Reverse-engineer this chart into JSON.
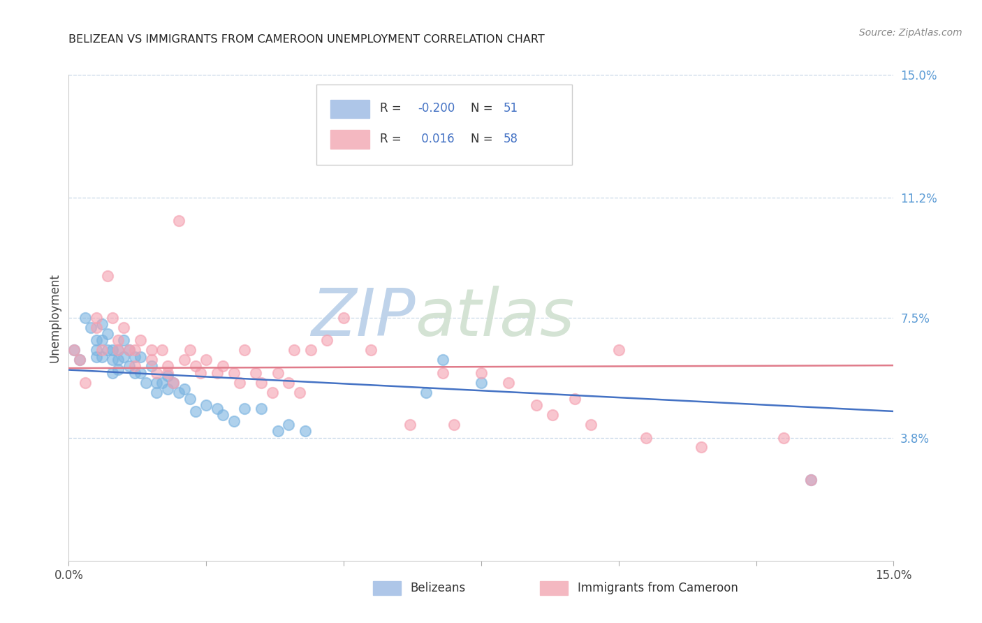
{
  "title": "BELIZEAN VS IMMIGRANTS FROM CAMEROON UNEMPLOYMENT CORRELATION CHART",
  "source": "Source: ZipAtlas.com",
  "ylabel_label": "Unemployment",
  "xmin": 0.0,
  "xmax": 0.15,
  "ymin": 0.0,
  "ymax": 0.15,
  "ylabel_values_right": [
    0.15,
    0.112,
    0.075,
    0.038
  ],
  "ylabel_ticks_right": [
    "15.0%",
    "11.2%",
    "7.5%",
    "3.8%"
  ],
  "series1_color": "#7ab3e0",
  "series2_color": "#f4a0b0",
  "trendline1_color": "#4472c4",
  "trendline2_color": "#e07b8a",
  "watermark_zip_color": "#b8cfe8",
  "watermark_atlas_color": "#d8e8d8",
  "background_color": "#ffffff",
  "grid_color": "#c8d8e8",
  "series1_R": -0.2,
  "series1_N": 51,
  "series2_R": 0.016,
  "series2_N": 58,
  "series1_points_x": [
    0.001,
    0.002,
    0.003,
    0.004,
    0.005,
    0.005,
    0.005,
    0.006,
    0.006,
    0.006,
    0.007,
    0.007,
    0.008,
    0.008,
    0.008,
    0.009,
    0.009,
    0.009,
    0.01,
    0.01,
    0.011,
    0.011,
    0.012,
    0.012,
    0.013,
    0.013,
    0.014,
    0.015,
    0.016,
    0.016,
    0.017,
    0.018,
    0.018,
    0.019,
    0.02,
    0.021,
    0.022,
    0.023,
    0.025,
    0.027,
    0.028,
    0.03,
    0.032,
    0.035,
    0.038,
    0.04,
    0.043,
    0.065,
    0.068,
    0.075,
    0.135
  ],
  "series1_points_y": [
    0.065,
    0.062,
    0.075,
    0.072,
    0.068,
    0.065,
    0.063,
    0.073,
    0.068,
    0.063,
    0.07,
    0.065,
    0.065,
    0.062,
    0.058,
    0.065,
    0.062,
    0.059,
    0.068,
    0.063,
    0.065,
    0.06,
    0.063,
    0.058,
    0.063,
    0.058,
    0.055,
    0.06,
    0.055,
    0.052,
    0.055,
    0.057,
    0.053,
    0.055,
    0.052,
    0.053,
    0.05,
    0.046,
    0.048,
    0.047,
    0.045,
    0.043,
    0.047,
    0.047,
    0.04,
    0.042,
    0.04,
    0.052,
    0.062,
    0.055,
    0.025
  ],
  "series2_points_x": [
    0.001,
    0.002,
    0.003,
    0.005,
    0.005,
    0.006,
    0.007,
    0.008,
    0.009,
    0.009,
    0.01,
    0.011,
    0.012,
    0.012,
    0.013,
    0.015,
    0.015,
    0.016,
    0.017,
    0.018,
    0.018,
    0.019,
    0.02,
    0.021,
    0.022,
    0.023,
    0.024,
    0.025,
    0.027,
    0.028,
    0.03,
    0.031,
    0.032,
    0.034,
    0.035,
    0.037,
    0.038,
    0.04,
    0.041,
    0.042,
    0.044,
    0.047,
    0.05,
    0.055,
    0.062,
    0.068,
    0.07,
    0.075,
    0.08,
    0.085,
    0.088,
    0.092,
    0.095,
    0.1,
    0.105,
    0.115,
    0.13,
    0.135
  ],
  "series2_points_y": [
    0.065,
    0.062,
    0.055,
    0.075,
    0.072,
    0.065,
    0.088,
    0.075,
    0.065,
    0.068,
    0.072,
    0.065,
    0.065,
    0.06,
    0.068,
    0.065,
    0.062,
    0.058,
    0.065,
    0.06,
    0.058,
    0.055,
    0.105,
    0.062,
    0.065,
    0.06,
    0.058,
    0.062,
    0.058,
    0.06,
    0.058,
    0.055,
    0.065,
    0.058,
    0.055,
    0.052,
    0.058,
    0.055,
    0.065,
    0.052,
    0.065,
    0.068,
    0.075,
    0.065,
    0.042,
    0.058,
    0.042,
    0.058,
    0.055,
    0.048,
    0.045,
    0.05,
    0.042,
    0.065,
    0.038,
    0.035,
    0.038,
    0.025
  ]
}
